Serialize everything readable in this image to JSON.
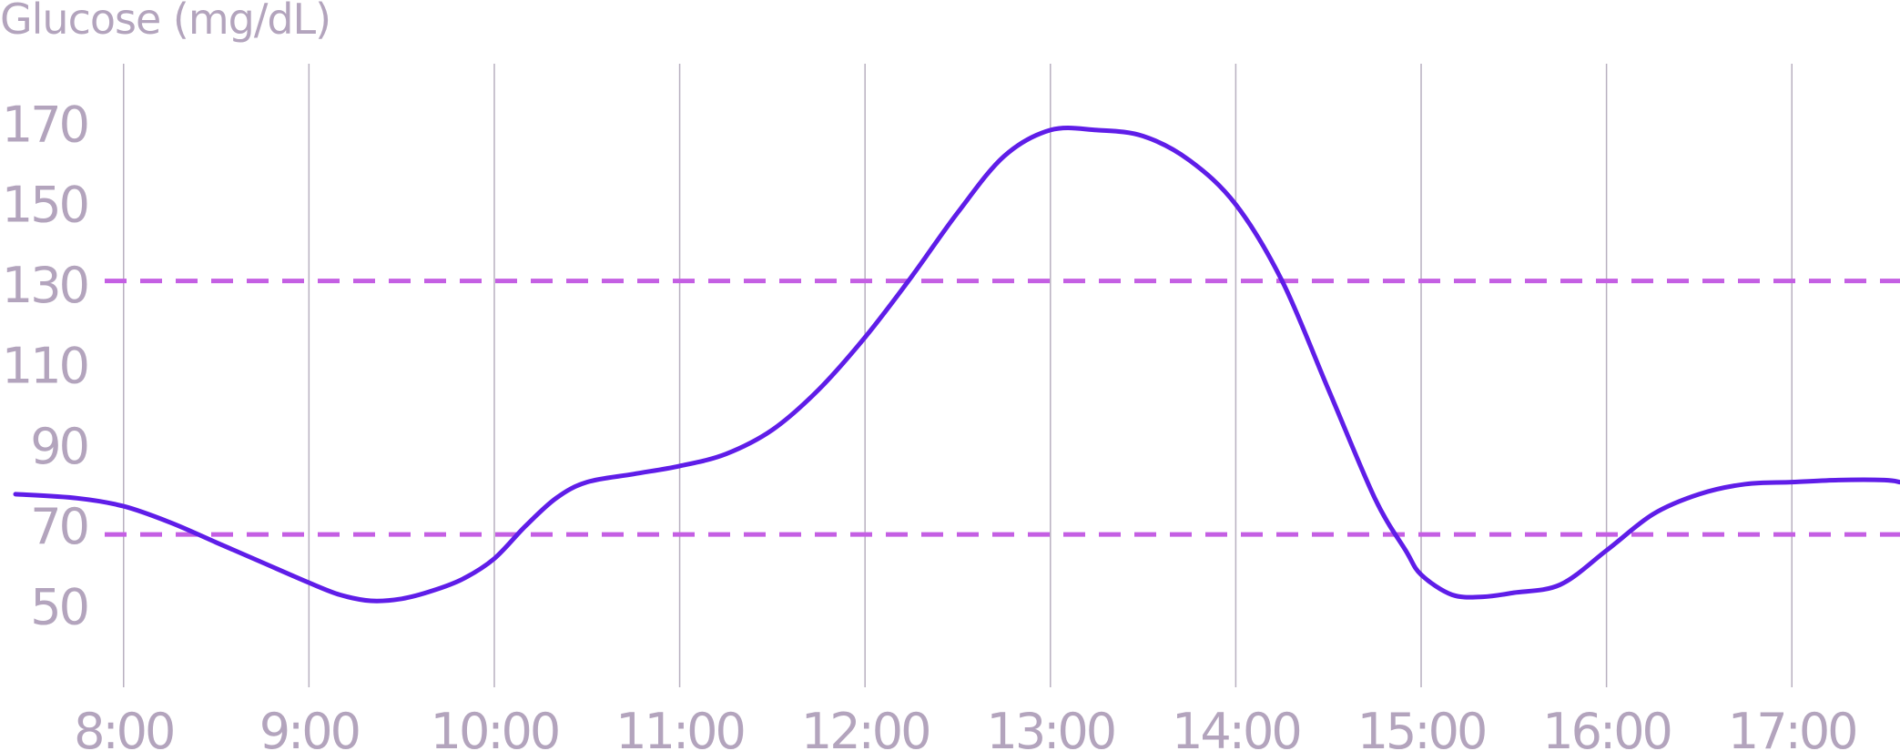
{
  "chart_data": {
    "type": "line",
    "title": "",
    "ylabel": "Glucose (mg/dL)",
    "xlabel": "",
    "x_ticks": [
      "8:00",
      "9:00",
      "10:00",
      "11:00",
      "12:00",
      "13:00",
      "14:00",
      "15:00",
      "16:00",
      "17:00"
    ],
    "y_ticks": [
      50,
      70,
      90,
      110,
      130,
      150,
      170
    ],
    "xlim": [
      "7:20",
      "17:35"
    ],
    "ylim": [
      30,
      185
    ],
    "grid": {
      "vertical": true,
      "horizontal": false
    },
    "colors": {
      "line": "#5f1de8",
      "threshold": "#c45fe3",
      "grid": "#b8b0c0",
      "text": "#b3a4bd"
    },
    "thresholds": [
      {
        "y": 131,
        "style": "dashed"
      },
      {
        "y": 68,
        "style": "dashed"
      }
    ],
    "series": [
      {
        "x": [
          "7:25",
          "7:45",
          "8:00",
          "8:15",
          "8:30",
          "8:45",
          "9:00",
          "9:10",
          "9:20",
          "9:30",
          "9:40",
          "9:50",
          "10:00",
          "10:10",
          "10:20",
          "10:30",
          "10:45",
          "11:00",
          "11:15",
          "11:30",
          "11:45",
          "12:00",
          "12:15",
          "12:30",
          "12:45",
          "13:00",
          "13:15",
          "13:30",
          "13:45",
          "14:00",
          "14:15",
          "14:30",
          "14:45",
          "14:55",
          "15:00",
          "15:10",
          "15:20",
          "15:30",
          "15:45",
          "16:00",
          "16:15",
          "16:30",
          "16:45",
          "17:00",
          "17:15",
          "17:30",
          "17:35"
        ],
        "values": [
          78,
          77,
          75,
          71,
          66,
          61,
          56,
          53,
          51.5,
          52,
          54,
          57,
          62,
          70,
          77,
          81,
          83,
          85,
          88,
          94,
          104,
          117,
          132,
          148,
          162,
          168.5,
          168.5,
          167,
          161,
          150,
          131,
          104,
          77,
          64,
          58,
          53,
          52.5,
          53.5,
          55.5,
          64,
          73,
          78,
          80.5,
          81,
          81.5,
          81.5,
          81
        ]
      }
    ]
  }
}
